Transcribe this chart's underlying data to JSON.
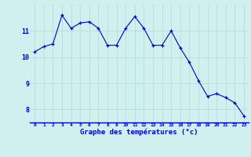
{
  "x": [
    0,
    1,
    2,
    3,
    4,
    5,
    6,
    7,
    8,
    9,
    10,
    11,
    12,
    13,
    14,
    15,
    16,
    17,
    18,
    19,
    20,
    21,
    22,
    23
  ],
  "y": [
    10.2,
    10.4,
    10.5,
    11.6,
    11.1,
    11.3,
    11.35,
    11.1,
    10.45,
    10.45,
    11.1,
    11.55,
    11.1,
    10.45,
    10.45,
    11.0,
    10.35,
    9.8,
    9.1,
    8.5,
    8.6,
    8.45,
    8.25,
    7.75
  ],
  "line_color": "#0000cc",
  "marker": "+",
  "marker_color": "#0000cc",
  "background_color": "#d0f0f0",
  "grid_color": "#b0d8d8",
  "xlabel": "Graphe des températures (°c)",
  "xlabel_color": "#0000cc",
  "tick_color": "#0000cc",
  "ylabel_ticks": [
    8,
    9,
    10,
    11
  ],
  "xlim": [
    -0.5,
    23.5
  ],
  "ylim": [
    7.5,
    12.0
  ],
  "figsize": [
    3.2,
    2.0
  ],
  "dpi": 100
}
